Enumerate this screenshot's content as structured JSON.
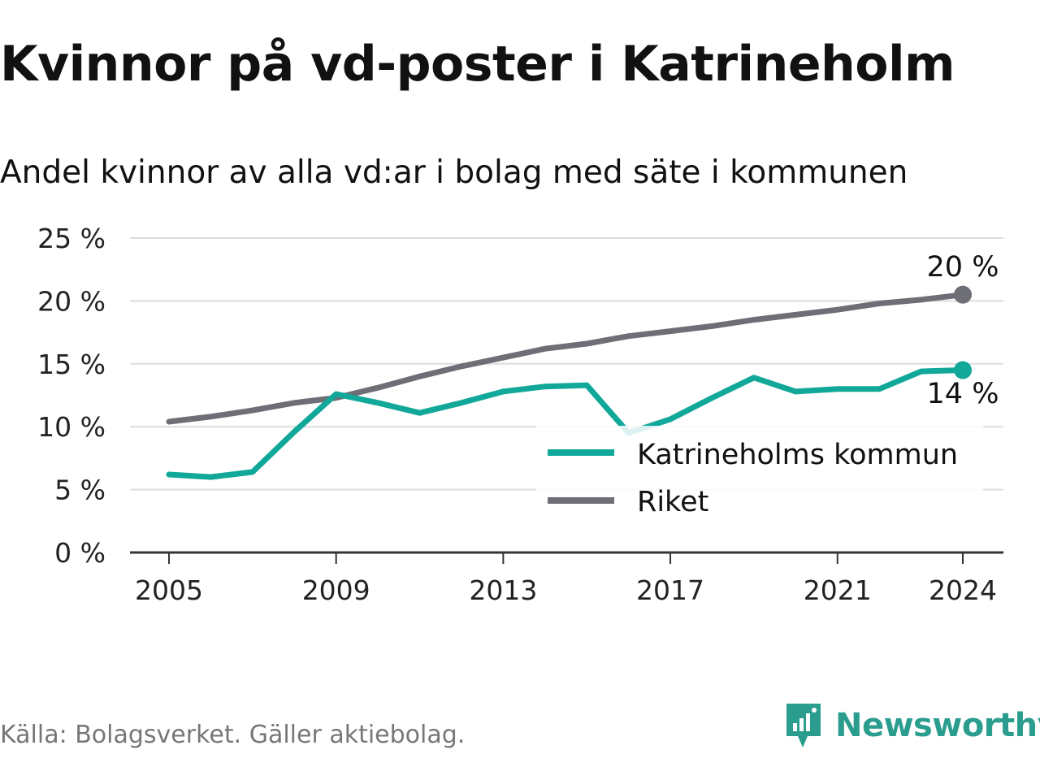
{
  "title": "Kvinnor på vd-poster i Katrineholm",
  "subtitle": "Andel kvinnor av alla vd:ar i bolag med säte i kommunen",
  "source": "Källa: Bolagsverket. Gäller aktiebolag.",
  "brand": "Newsworthy",
  "colors": {
    "kommun": "#11a89a",
    "riket": "#6e6e76",
    "grid": "#dddddd",
    "axis": "#333333"
  },
  "chart_data": {
    "type": "line",
    "x": [
      2005,
      2006,
      2007,
      2008,
      2009,
      2010,
      2011,
      2012,
      2013,
      2014,
      2015,
      2016,
      2017,
      2018,
      2019,
      2020,
      2021,
      2022,
      2023,
      2024
    ],
    "series": [
      {
        "name": "Katrineholms kommun",
        "color": "#11a89a",
        "values": [
          6.2,
          6.0,
          6.4,
          9.6,
          12.6,
          11.9,
          11.1,
          11.9,
          12.8,
          13.2,
          13.3,
          9.5,
          10.6,
          12.3,
          13.9,
          12.8,
          13.0,
          13.0,
          14.4,
          14.5
        ]
      },
      {
        "name": "Riket",
        "color": "#6e6e76",
        "values": [
          10.4,
          10.8,
          11.3,
          11.9,
          12.3,
          13.1,
          14.0,
          14.8,
          15.5,
          16.2,
          16.6,
          17.2,
          17.6,
          18.0,
          18.5,
          18.9,
          19.3,
          19.8,
          20.1,
          20.5
        ]
      }
    ],
    "ylim": [
      0,
      25
    ],
    "yticks": [
      "0 %",
      "5 %",
      "10 %",
      "15 %",
      "20 %",
      "25 %"
    ],
    "xticks": [
      "2005",
      "2009",
      "2013",
      "2017",
      "2021",
      "2024"
    ],
    "end_labels": {
      "riket": "20 %",
      "kommun": "14 %"
    },
    "legend_position": "right",
    "grid": true
  }
}
